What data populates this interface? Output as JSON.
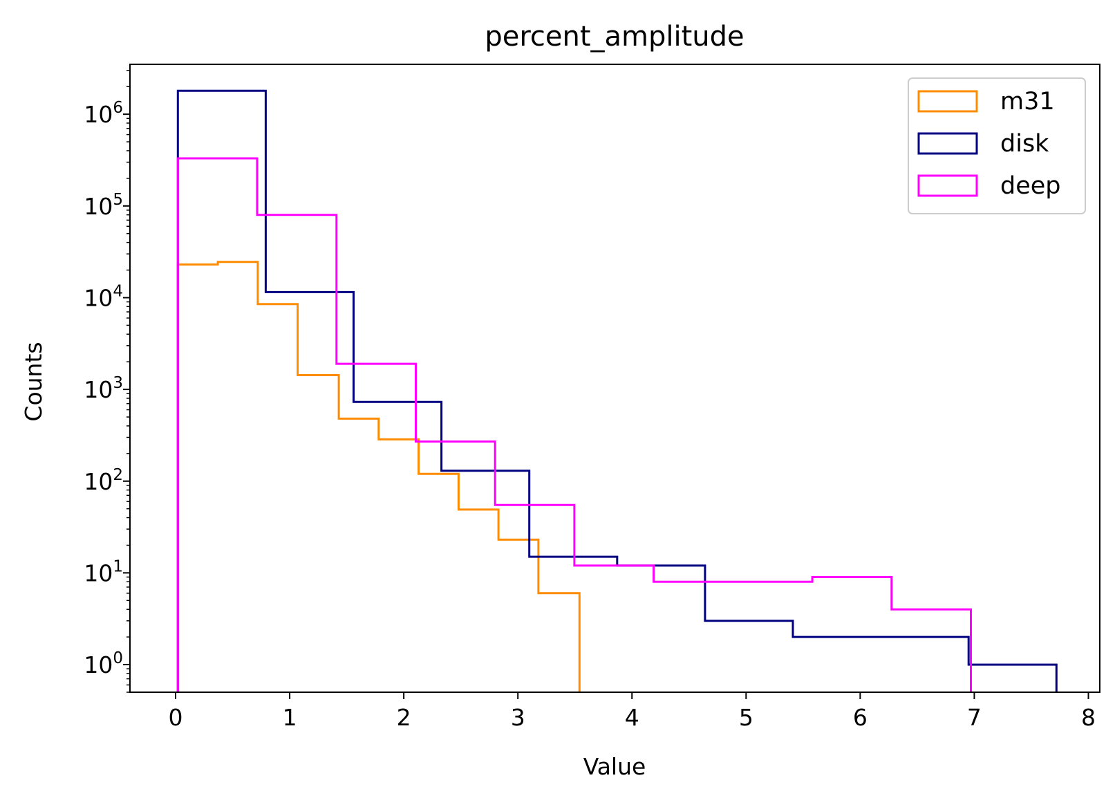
{
  "chart_data": {
    "type": "histogram",
    "title": "percent_amplitude",
    "xlabel": "Value",
    "ylabel": "Counts",
    "xlim": [
      -0.4,
      8.1
    ],
    "ylim": [
      0.5,
      3500000
    ],
    "yscale": "log",
    "x_ticks": [
      0,
      1,
      2,
      3,
      4,
      5,
      6,
      7,
      8
    ],
    "y_ticks": [
      {
        "value": 1,
        "base": "10",
        "exp": "0"
      },
      {
        "value": 10,
        "base": "10",
        "exp": "1"
      },
      {
        "value": 100,
        "base": "10",
        "exp": "2"
      },
      {
        "value": 1000,
        "base": "10",
        "exp": "3"
      },
      {
        "value": 10000,
        "base": "10",
        "exp": "4"
      },
      {
        "value": 100000,
        "base": "10",
        "exp": "5"
      },
      {
        "value": 1000000,
        "base": "10",
        "exp": "6"
      }
    ],
    "grid": false,
    "legend_position": "top-right",
    "series": [
      {
        "name": "m31",
        "color": "#ff8c00",
        "bin_edges": [
          0.02,
          0.37,
          0.72,
          1.07,
          1.43,
          1.78,
          2.13,
          2.48,
          2.83,
          3.18,
          3.54
        ],
        "counts": [
          23000,
          24500,
          8500,
          1430,
          480,
          285,
          120,
          49,
          23,
          6
        ]
      },
      {
        "name": "disk",
        "color": "#000080",
        "bin_edges": [
          0.02,
          0.79,
          1.56,
          2.33,
          3.1,
          3.87,
          4.64,
          5.41,
          6.18,
          6.95,
          7.72
        ],
        "counts": [
          1800000,
          11500,
          730,
          130,
          15,
          12,
          3,
          2,
          2,
          1
        ]
      },
      {
        "name": "deep",
        "color": "#ff00ff",
        "bin_edges": [
          0.02,
          0.715,
          1.41,
          2.105,
          2.8,
          3.495,
          4.19,
          4.885,
          5.58,
          6.275,
          6.97
        ],
        "counts": [
          330000,
          80000,
          1900,
          270,
          55,
          12,
          8,
          8,
          9,
          4
        ]
      }
    ]
  }
}
